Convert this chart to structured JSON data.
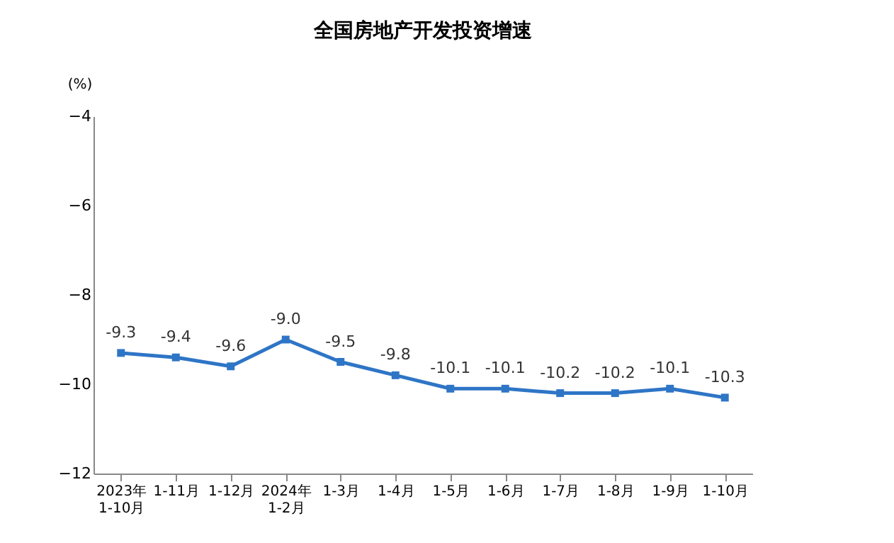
{
  "chart_data": {
    "type": "line",
    "title": "全国房地产开发投资增速",
    "ylabel": "(%)",
    "categories": [
      "2023年\n1-10月",
      "1-11月",
      "1-12月",
      "2024年\n1-2月",
      "1-3月",
      "1-4月",
      "1-5月",
      "1-6月",
      "1-7月",
      "1-8月",
      "1-9月",
      "1-10月"
    ],
    "series": [
      {
        "color": "#2e75c6",
        "values": [
          -9.3,
          -9.4,
          -9.6,
          -9.0,
          -9.5,
          -9.8,
          -10.1,
          -10.1,
          -10.2,
          -10.2,
          -10.1,
          -10.3
        ],
        "value_labels": [
          "-9.3",
          "-9.4",
          "-9.6",
          "-9.0",
          "-9.5",
          "-9.8",
          "-10.1",
          "-10.1",
          "-10.2",
          "-10.2",
          "-10.1",
          "-10.3"
        ]
      }
    ],
    "ylim": [
      -12,
      -4
    ],
    "yticks": [
      -12,
      -10,
      -8,
      -6,
      -4
    ],
    "marker": "square",
    "line_style": "solid",
    "grid": false
  }
}
